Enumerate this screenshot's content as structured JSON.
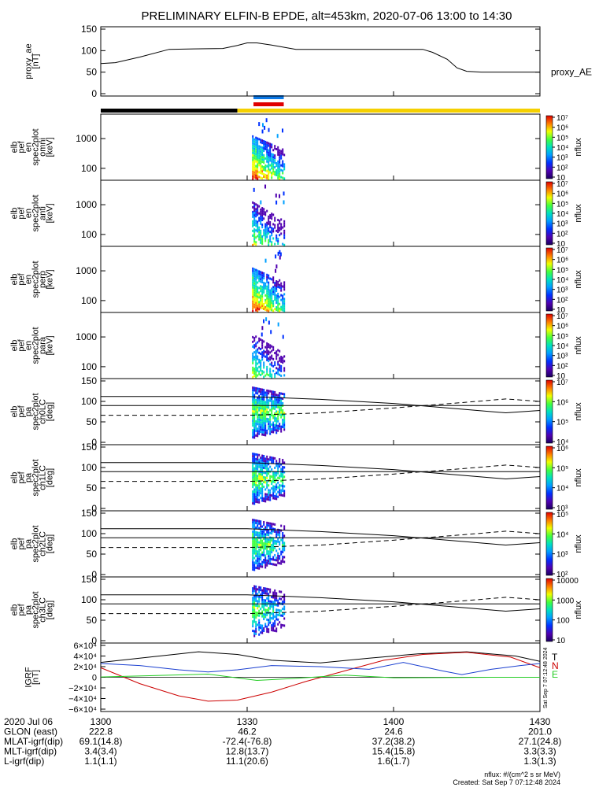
{
  "chart_data": {
    "type": "multi-panel",
    "title": "PRELIMINARY ELFIN-B EPDE, alt=453km, 2020-07-06 13:00 to 14:30",
    "x_axis": {
      "ticks": [
        "1300",
        "1330",
        "1400",
        "1430"
      ],
      "minutes": [
        0,
        30,
        60,
        90
      ]
    },
    "panels": [
      {
        "id": "proxy_ae",
        "type": "line",
        "ylabel": [
          "proxy_ae",
          "[nT]"
        ],
        "ylim": [
          0,
          150
        ],
        "yticks": [
          "0",
          "50",
          "100",
          "150"
        ],
        "series": [
          {
            "name": "proxy_AE",
            "x": [
              0,
              3,
              8,
              14,
              19,
              25,
              28,
              30,
              32,
              35,
              40,
              45,
              50,
              55,
              60,
              66,
              68,
              71,
              73,
              75,
              78,
              81,
              85,
              90
            ],
            "y": [
              70,
              72,
              85,
              103,
              104,
              105,
              112,
              118,
              118,
              113,
              103,
              103,
              103,
              103,
              103,
              103,
              96,
              80,
              60,
              52,
              50,
              50,
              50,
              50
            ]
          }
        ]
      },
      {
        "id": "en_omni",
        "type": "heatmap",
        "ylabel": [
          "elb",
          "pef",
          "en",
          "spec2plot",
          "omni",
          "[keV]"
        ],
        "yticks": [
          "100",
          "1000"
        ],
        "colorbar": {
          "label": "nflux",
          "ticks": [
            "10",
            "10²",
            "10³",
            "10⁴",
            "10⁵",
            "10⁶",
            "10⁷"
          ]
        }
      },
      {
        "id": "en_anti",
        "type": "heatmap",
        "ylabel": [
          "elb",
          "pef",
          "en",
          "spec2plot",
          "anti",
          "[keV]"
        ],
        "yticks": [
          "100",
          "1000"
        ],
        "colorbar": {
          "label": "nflux",
          "ticks": [
            "10",
            "10²",
            "10³",
            "10⁴",
            "10⁵",
            "10⁶",
            "10⁷"
          ]
        }
      },
      {
        "id": "en_perp",
        "type": "heatmap",
        "ylabel": [
          "elb",
          "pef",
          "en",
          "spec2plot",
          "perp",
          "[keV]"
        ],
        "yticks": [
          "100",
          "1000"
        ],
        "colorbar": {
          "label": "nflux",
          "ticks": [
            "10",
            "10²",
            "10³",
            "10⁴",
            "10⁵",
            "10⁶",
            "10⁷"
          ]
        }
      },
      {
        "id": "en_para",
        "type": "heatmap",
        "ylabel": [
          "elb",
          "pef",
          "en",
          "spec2plot",
          "para",
          "[keV]"
        ],
        "yticks": [
          "100",
          "1000"
        ],
        "colorbar": {
          "label": "nflux",
          "ticks": [
            "10",
            "10²",
            "10³",
            "10⁴",
            "10⁵",
            "10⁶",
            "10⁷"
          ]
        }
      },
      {
        "id": "ch0LC",
        "type": "heatmap",
        "ylabel": [
          "elb",
          "pef",
          "pa",
          "spec2plot",
          "ch0LC",
          "[deg]"
        ],
        "ylim": [
          0,
          150
        ],
        "yticks": [
          "0",
          "50",
          "100",
          "150"
        ],
        "colorbar": {
          "label": "nflux",
          "ticks": [
            "10⁴",
            "10⁵",
            "10⁶",
            "10⁷"
          ]
        }
      },
      {
        "id": "ch1LC",
        "type": "heatmap",
        "ylabel": [
          "elb",
          "pef",
          "pa",
          "spec2plot",
          "ch1LC",
          "[deg]"
        ],
        "ylim": [
          0,
          150
        ],
        "yticks": [
          "0",
          "50",
          "100",
          "150"
        ],
        "colorbar": {
          "label": "nflux",
          "ticks": [
            "10³",
            "10⁴",
            "10⁵",
            "10⁶"
          ]
        }
      },
      {
        "id": "ch2LC",
        "type": "heatmap",
        "ylabel": [
          "elb",
          "pef",
          "pa",
          "spec2plot",
          "ch2LC",
          "[deg]"
        ],
        "ylim": [
          0,
          150
        ],
        "yticks": [
          "0",
          "50",
          "100",
          "150"
        ],
        "colorbar": {
          "label": "nflux",
          "ticks": [
            "10²",
            "10³",
            "10⁴",
            "10⁵"
          ]
        }
      },
      {
        "id": "ch3LC",
        "type": "heatmap",
        "ylabel": [
          "elb",
          "pef",
          "pa",
          "spec2plot",
          "ch3LC",
          "[deg]"
        ],
        "ylim": [
          0,
          150
        ],
        "yticks": [
          "0",
          "50",
          "100",
          "150"
        ],
        "colorbar": {
          "label": "nflux",
          "ticks": [
            "10",
            "100",
            "1000",
            "10000"
          ]
        }
      },
      {
        "id": "igrf",
        "type": "line",
        "ylabel": [
          "IGRF",
          "[nT]"
        ],
        "ylim": [
          -60000,
          60000
        ],
        "yticks": [
          "−6×10⁴",
          "−4×10⁴",
          "−2×10⁴",
          "0",
          "2×10⁴",
          "4×10⁴",
          "6×10⁴"
        ],
        "legend": [
          "T",
          "N",
          "E"
        ],
        "side_note": "Sat Sep 7 07:12:48 2024"
      }
    ],
    "colors": {
      "blue": "#0b78e6",
      "red": "#e00000",
      "yellow": "#f5d000",
      "black": "#000000",
      "igrf_T": "#000000",
      "igrf_N": "#cc0000",
      "igrf_E": "#22cc22",
      "igrf_B": "#1a3fd0"
    }
  },
  "footer": {
    "rows": [
      {
        "label": "2020 Jul 06",
        "values": [
          "1300",
          "1330",
          "1400",
          "1430"
        ]
      },
      {
        "label": "GLON (east)",
        "values": [
          "222.8",
          "46.2",
          "24.6",
          "201.0"
        ]
      },
      {
        "label": "MLAT-igrf(dip)",
        "values": [
          "69.1(14.8)",
          "-72.4(-76.8)",
          "37.2(38.2)",
          "27.1(24.8)"
        ]
      },
      {
        "label": "MLT-igrf(dip)",
        "values": [
          "3.4(3.4)",
          "12.8(13.7)",
          "15.4(15.8)",
          "3.3(3.3)"
        ]
      },
      {
        "label": "L-igrf(dip)",
        "values": [
          "1.1(1.1)",
          "11.1(20.6)",
          "1.6(1.7)",
          "1.3(1.3)"
        ]
      }
    ],
    "units_note": "nflux: #/(cm^2 s sr MeV)",
    "created_note": "Created: Sat Sep  7 07:12:48 2024"
  }
}
